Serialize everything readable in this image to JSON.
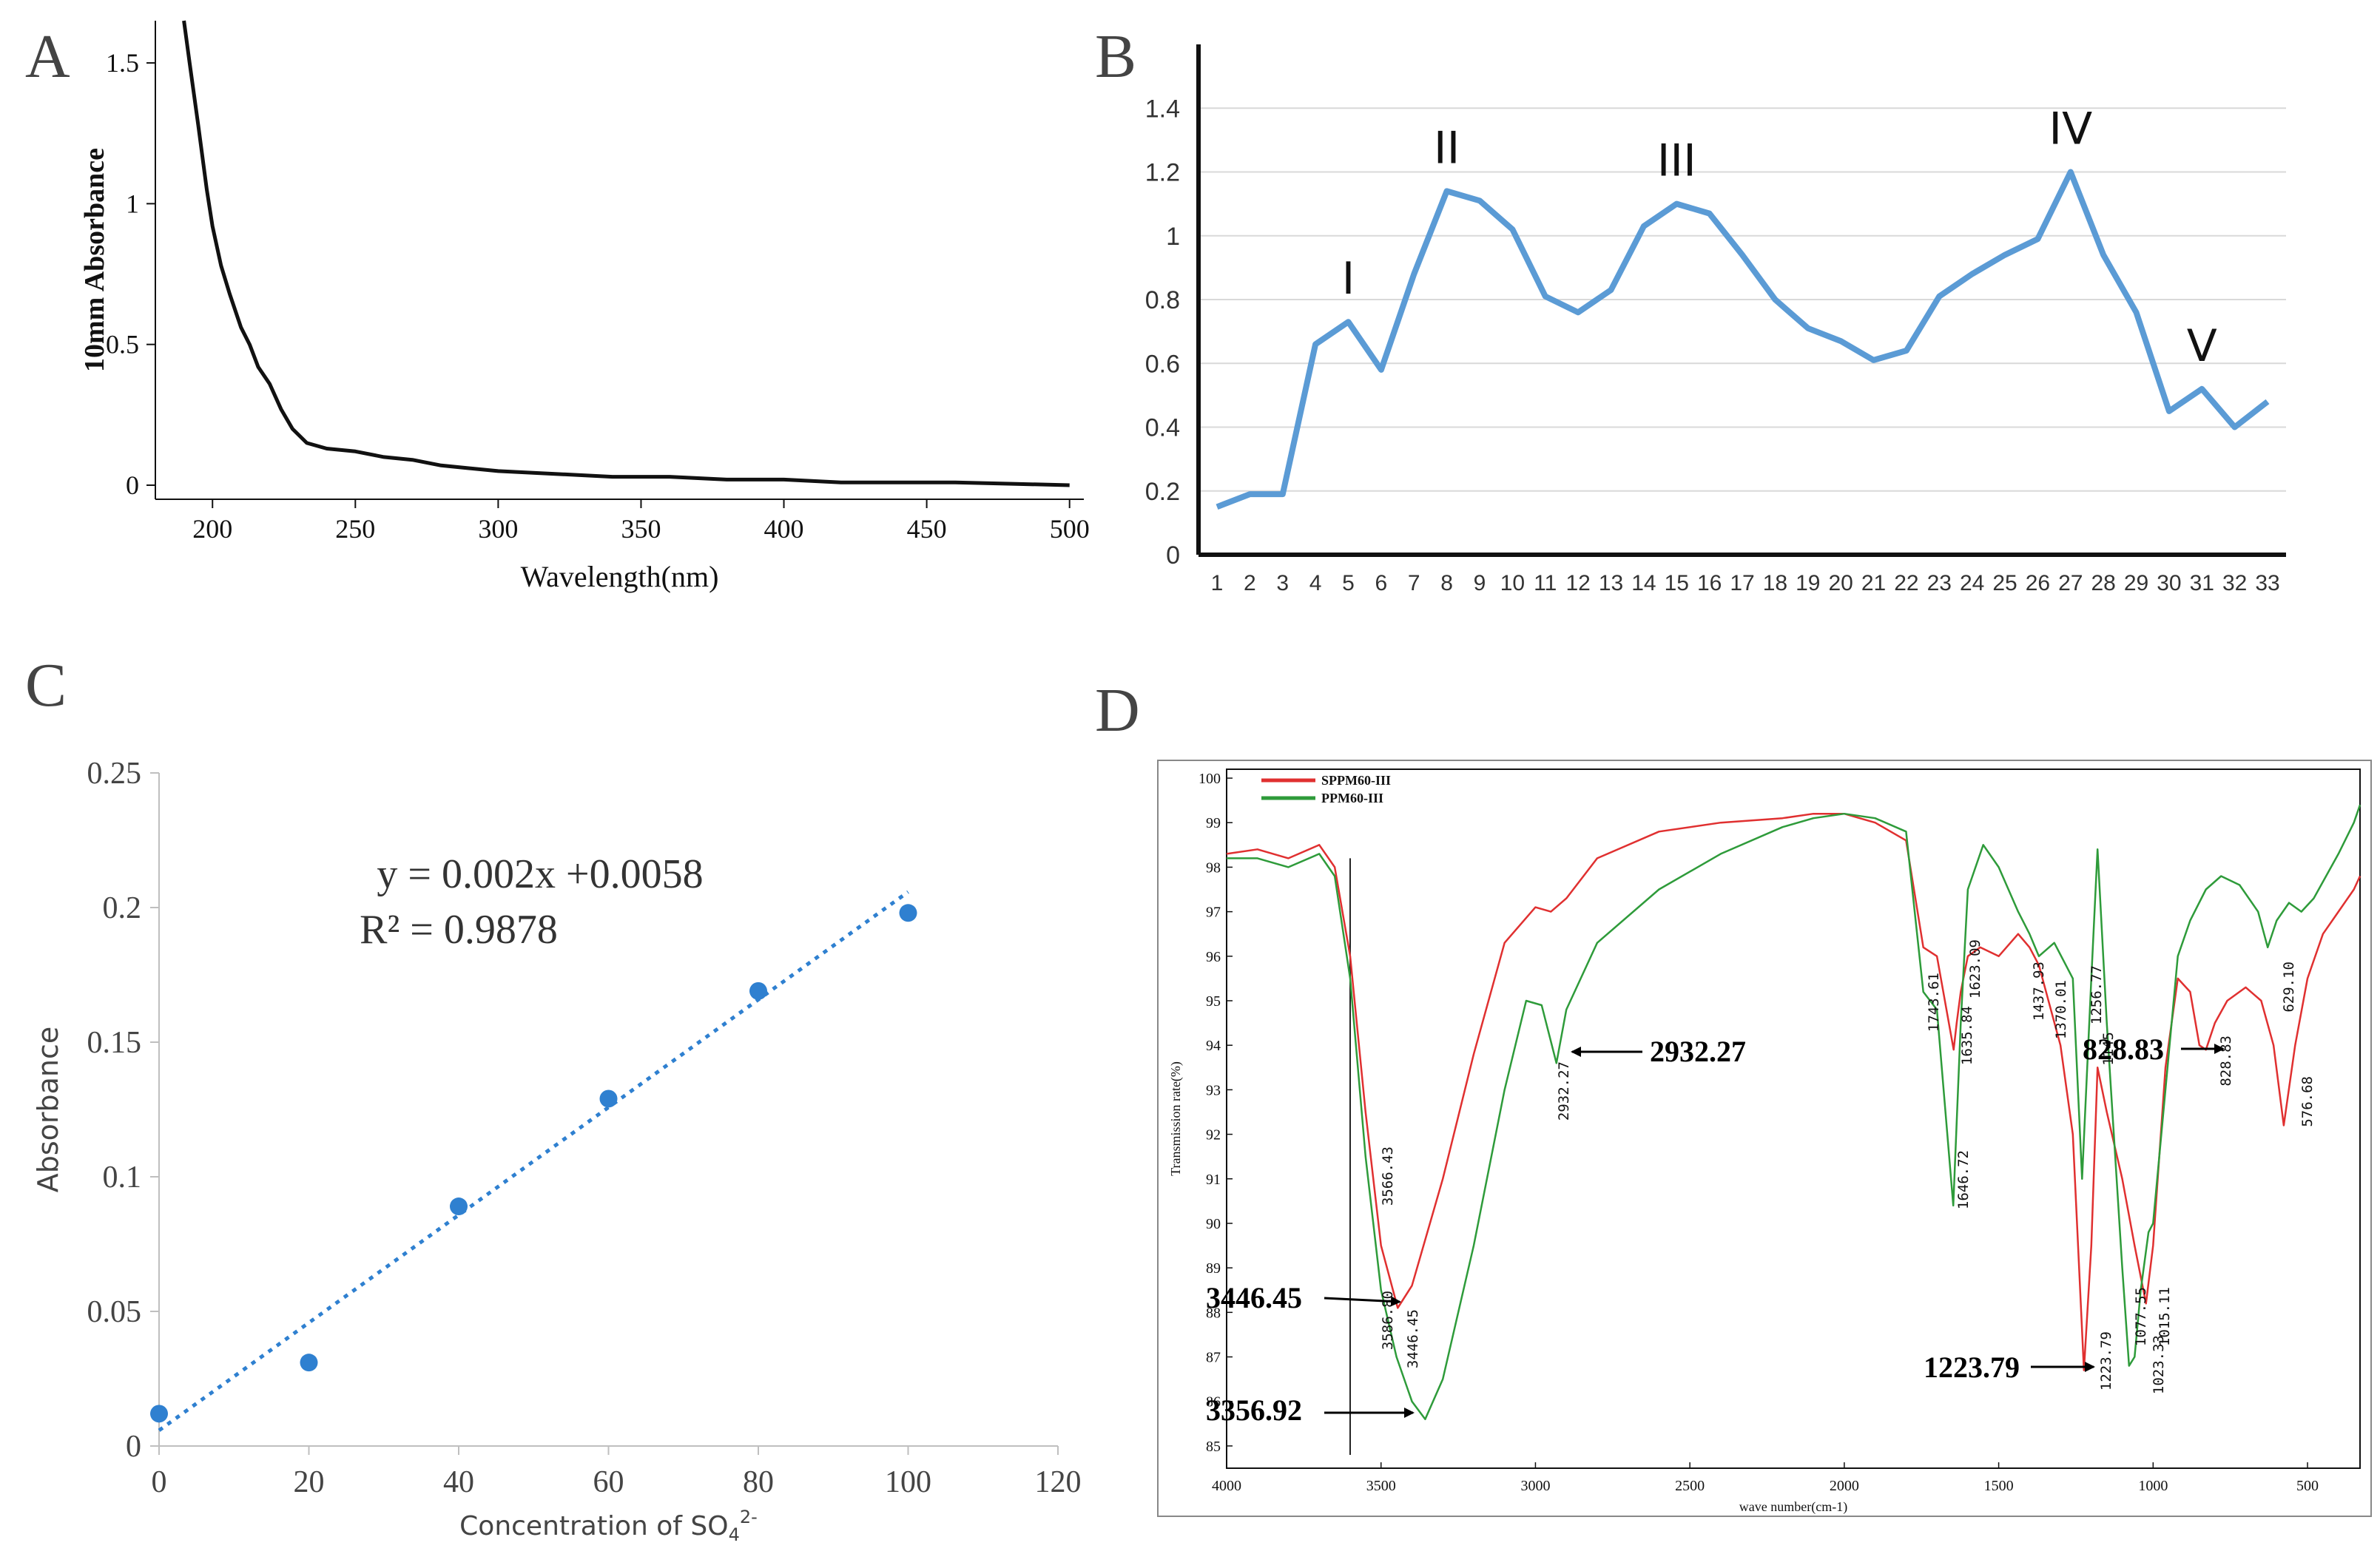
{
  "panels": {
    "a": {
      "letter": "A"
    },
    "b": {
      "letter": "B"
    },
    "c": {
      "letter": "C"
    },
    "d": {
      "letter": "D"
    }
  },
  "colors": {
    "black": "#111111",
    "blue_line": "#5b9bd5",
    "blue_dot": "#2f80d0",
    "red": "#e03030",
    "green": "#2e9b3a",
    "grid": "#d9d9d9"
  },
  "chart_data": [
    {
      "id": "A",
      "type": "line",
      "title": "",
      "xlabel": "Wavelength(nm)",
      "ylabel": "10mm Absorbance",
      "xlim": [
        180,
        505
      ],
      "ylim": [
        -0.05,
        1.65
      ],
      "xticks": [
        200,
        250,
        300,
        350,
        400,
        450,
        500
      ],
      "xtick_labels": [
        "200",
        "250",
        "300",
        "350",
        "400",
        "450",
        "500"
      ],
      "yticks": [
        0,
        0.5,
        1,
        1.5
      ],
      "ytick_labels": [
        "0",
        "0.5",
        "1",
        "1.5"
      ],
      "x": [
        190,
        192,
        195,
        198,
        200,
        203,
        206,
        210,
        213,
        216,
        220,
        224,
        228,
        233,
        240,
        250,
        260,
        270,
        280,
        290,
        300,
        320,
        340,
        360,
        380,
        400,
        420,
        440,
        460,
        480,
        500
      ],
      "y": [
        1.65,
        1.5,
        1.28,
        1.05,
        0.92,
        0.78,
        0.68,
        0.56,
        0.5,
        0.42,
        0.36,
        0.27,
        0.2,
        0.15,
        0.13,
        0.12,
        0.1,
        0.09,
        0.07,
        0.06,
        0.05,
        0.04,
        0.03,
        0.03,
        0.02,
        0.02,
        0.01,
        0.01,
        0.01,
        0.005,
        0.0
      ],
      "grid": false
    },
    {
      "id": "B",
      "type": "line",
      "title": "",
      "xlabel": "",
      "ylabel": "",
      "ylim": [
        0,
        1.6
      ],
      "yticks": [
        0,
        0.2,
        0.4,
        0.6,
        0.8,
        1,
        1.2,
        1.4
      ],
      "ytick_labels": [
        "0",
        "0.2",
        "0.4",
        "0.6",
        "0.8",
        "1",
        "1.2",
        "1.4"
      ],
      "categories": [
        "1",
        "2",
        "3",
        "4",
        "5",
        "6",
        "7",
        "8",
        "9",
        "10",
        "11",
        "12",
        "13",
        "14",
        "15",
        "16",
        "17",
        "18",
        "19",
        "20",
        "21",
        "22",
        "23",
        "24",
        "25",
        "26",
        "27",
        "28",
        "29",
        "30",
        "31",
        "32",
        "33"
      ],
      "values": [
        0.15,
        0.19,
        0.19,
        0.66,
        0.73,
        0.58,
        0.88,
        1.14,
        1.11,
        1.02,
        0.81,
        0.76,
        0.83,
        1.03,
        1.1,
        1.07,
        0.94,
        0.8,
        0.71,
        0.67,
        0.61,
        0.64,
        0.81,
        0.88,
        0.94,
        0.99,
        1.2,
        0.94,
        0.76,
        0.45,
        0.52,
        0.4,
        0.48
      ],
      "annotations": [
        {
          "text": "I",
          "index": 5
        },
        {
          "text": "II",
          "index": 8
        },
        {
          "text": "III",
          "index": 15
        },
        {
          "text": "IV",
          "index": 27
        },
        {
          "text": "V",
          "index": 31
        }
      ],
      "grid": true
    },
    {
      "id": "C",
      "type": "scatter",
      "title": "",
      "xlabel": "Concentration of SO",
      "xlabel_sub": "4",
      "xlabel_sup": "2-",
      "ylabel": "Absorbance",
      "xlim": [
        0,
        120
      ],
      "ylim": [
        0,
        0.25
      ],
      "xticks": [
        0,
        20,
        40,
        60,
        80,
        100,
        120
      ],
      "xtick_labels": [
        "0",
        "20",
        "40",
        "60",
        "80",
        "100",
        "120"
      ],
      "yticks": [
        0,
        0.05,
        0.1,
        0.15,
        0.2,
        0.25
      ],
      "ytick_labels": [
        "0",
        "0.05",
        "0.1",
        "0.15",
        "0.2",
        "0.25"
      ],
      "x": [
        0,
        20,
        40,
        60,
        80,
        100
      ],
      "y": [
        0.012,
        0.031,
        0.089,
        0.129,
        0.169,
        0.198
      ],
      "trendline": {
        "slope": 0.002,
        "intercept": 0.0058,
        "from": 0,
        "to": 100
      },
      "equation": "y = 0.002x +0.0058",
      "r2": "R² = 0.9878",
      "grid": false
    },
    {
      "id": "D",
      "type": "line",
      "title": "",
      "xlabel": "wave number(cm-1)",
      "ylabel": "Transmission rate(%)",
      "xlim": [
        4000,
        330
      ],
      "ylim": [
        84.5,
        100.2
      ],
      "xticks": [
        4000,
        3500,
        3000,
        2500,
        2000,
        1500,
        1000,
        500
      ],
      "xtick_labels": [
        "4000",
        "3500",
        "3000",
        "2500",
        "2000",
        "1500",
        "1000",
        "500"
      ],
      "yticks": [
        85,
        86,
        87,
        88,
        89,
        90,
        91,
        92,
        93,
        94,
        95,
        96,
        97,
        98,
        99,
        100
      ],
      "ytick_labels": [
        "85",
        "86",
        "87",
        "88",
        "89",
        "90",
        "91",
        "92",
        "93",
        "94",
        "95",
        "96",
        "97",
        "98",
        "99",
        "100"
      ],
      "legend": [
        "SPPM60-III",
        "PPM60-III"
      ],
      "legend_position": "top-left",
      "series": [
        {
          "name": "SPPM60-III",
          "color": "#e03030",
          "x": [
            4000,
            3900,
            3800,
            3700,
            3650,
            3600,
            3550,
            3500,
            3446,
            3400,
            3300,
            3200,
            3100,
            3000,
            2950,
            2900,
            2800,
            2600,
            2400,
            2200,
            2100,
            2000,
            1900,
            1800,
            1744,
            1700,
            1646,
            1636,
            1623,
            1600,
            1560,
            1500,
            1437,
            1400,
            1370,
            1300,
            1260,
            1224,
            1200,
            1180,
            1150,
            1100,
            1060,
            1023,
            1000,
            960,
            920,
            880,
            850,
            829,
            800,
            760,
            700,
            650,
            610,
            577,
            540,
            500,
            450,
            400,
            350,
            330
          ],
          "y": [
            98.3,
            98.4,
            98.2,
            98.5,
            98.0,
            96.0,
            92.5,
            89.5,
            88.1,
            88.6,
            91.0,
            93.8,
            96.3,
            97.1,
            97.0,
            97.3,
            98.2,
            98.8,
            99.0,
            99.1,
            99.2,
            99.2,
            99.0,
            98.6,
            96.2,
            96.0,
            93.9,
            94.5,
            95.2,
            96.0,
            96.2,
            96.0,
            96.5,
            96.2,
            95.8,
            94.0,
            92.0,
            86.7,
            89.5,
            93.5,
            92.5,
            91.0,
            89.5,
            88.2,
            89.5,
            93.5,
            95.5,
            95.2,
            94.0,
            93.9,
            94.5,
            95.0,
            95.3,
            95.0,
            94.0,
            92.2,
            94.0,
            95.5,
            96.5,
            97.0,
            97.5,
            97.8
          ]
        },
        {
          "name": "PPM60-III",
          "color": "#2e9b3a",
          "x": [
            4000,
            3900,
            3800,
            3700,
            3650,
            3600,
            3550,
            3500,
            3450,
            3400,
            3357,
            3300,
            3200,
            3100,
            3030,
            2980,
            2932,
            2900,
            2800,
            2600,
            2400,
            2200,
            2100,
            2000,
            1900,
            1800,
            1744,
            1700,
            1647,
            1623,
            1600,
            1550,
            1500,
            1437,
            1400,
            1370,
            1320,
            1260,
            1230,
            1200,
            1180,
            1150,
            1100,
            1078,
            1060,
            1040,
            1015,
            1000,
            960,
            920,
            880,
            829,
            780,
            720,
            660,
            629,
            600,
            560,
            520,
            480,
            440,
            400,
            350,
            330
          ],
          "y": [
            98.2,
            98.2,
            98.0,
            98.3,
            97.8,
            95.5,
            91.5,
            88.5,
            87.0,
            86.0,
            85.6,
            86.5,
            89.5,
            93.0,
            95.0,
            94.9,
            93.6,
            94.8,
            96.3,
            97.5,
            98.3,
            98.9,
            99.1,
            99.2,
            99.1,
            98.8,
            95.2,
            94.8,
            90.4,
            94.5,
            97.5,
            98.5,
            98.0,
            97.0,
            96.5,
            96.0,
            96.3,
            95.5,
            91.0,
            95.5,
            98.4,
            94.5,
            89.0,
            86.8,
            87.0,
            88.5,
            89.8,
            90.0,
            93.0,
            96.0,
            96.8,
            97.5,
            97.8,
            97.6,
            97.0,
            96.2,
            96.8,
            97.2,
            97.0,
            97.3,
            97.8,
            98.3,
            99.0,
            99.4
          ]
        }
      ],
      "vertical_line_x": 3600,
      "peak_labels": [
        "3566.43",
        "3586.80",
        "3446.45",
        "2932.27",
        "1743.61",
        "1635.84",
        "1646.72",
        "1623.09",
        "1437.93",
        "1370.01",
        "1256.77",
        "1145",
        "1223.79",
        "1077.55",
        "1023.33",
        "1015.11",
        "828.83",
        "629.10",
        "576.68"
      ],
      "callouts": [
        "3446.45",
        "3356.92",
        "2932.27",
        "828.83",
        "1223.79"
      ]
    }
  ]
}
